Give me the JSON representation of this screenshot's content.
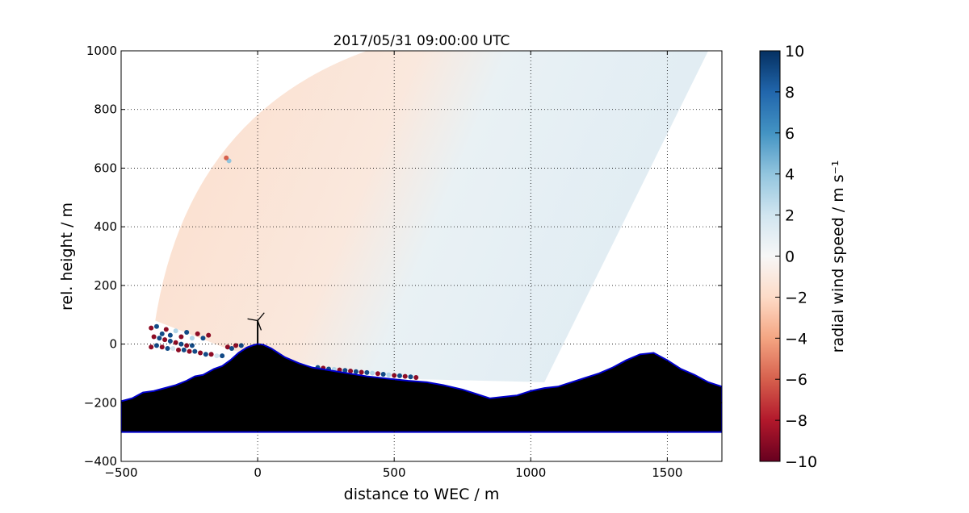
{
  "chart_data": {
    "type": "heatmap",
    "title": "2017/05/31 09:00:00 UTC",
    "xlabel": "distance to WEC / m",
    "ylabel": "rel. height / m",
    "xlim": [
      -500,
      1700
    ],
    "ylim": [
      -400,
      1000
    ],
    "xticks": [
      -500,
      0,
      500,
      1000,
      1500
    ],
    "yticks": [
      -400,
      -200,
      0,
      200,
      400,
      600,
      800,
      1000
    ],
    "xtick_labels": [
      "−500",
      "0",
      "500",
      "1000",
      "1500"
    ],
    "ytick_labels": [
      "−400",
      "−200",
      "0",
      "200",
      "400",
      "600",
      "800",
      "1000"
    ],
    "grid": true,
    "colorbar": {
      "label": "radial wind speed / m s⁻¹",
      "range": [
        -10,
        10
      ],
      "colormap": "RdBu",
      "ticks": [
        -10,
        -8,
        -6,
        -4,
        -2,
        0,
        2,
        4,
        6,
        8,
        10
      ],
      "tick_labels": [
        "−10",
        "−8",
        "−6",
        "−4",
        "−2",
        "0",
        "2",
        "4",
        "6",
        "8",
        "10"
      ]
    },
    "scan": {
      "description": "RHI lidar scan sector",
      "near_edge": [
        [
          -375,
          80
        ],
        [
          -100,
          -20
        ],
        [
          250,
          -80
        ],
        [
          600,
          -120
        ],
        [
          1050,
          -130
        ]
      ],
      "far_edge_start": [
        -375,
        80
      ],
      "far_edge_end": [
        1650,
        1000
      ],
      "west_sector_value": -1.8,
      "east_sector_value": 1.2
    },
    "terrain": {
      "color": "#000000",
      "outline_color": "#0000cc",
      "base": -300,
      "profile": [
        [
          -500,
          -195
        ],
        [
          -460,
          -185
        ],
        [
          -420,
          -165
        ],
        [
          -380,
          -160
        ],
        [
          -340,
          -150
        ],
        [
          -300,
          -140
        ],
        [
          -260,
          -125
        ],
        [
          -230,
          -110
        ],
        [
          -200,
          -105
        ],
        [
          -160,
          -85
        ],
        [
          -130,
          -75
        ],
        [
          -100,
          -55
        ],
        [
          -70,
          -30
        ],
        [
          -40,
          -12
        ],
        [
          -20,
          -5
        ],
        [
          0,
          0
        ],
        [
          20,
          -2
        ],
        [
          50,
          -15
        ],
        [
          100,
          -45
        ],
        [
          150,
          -65
        ],
        [
          200,
          -80
        ],
        [
          300,
          -95
        ],
        [
          400,
          -110
        ],
        [
          500,
          -120
        ],
        [
          550,
          -125
        ],
        [
          620,
          -130
        ],
        [
          680,
          -140
        ],
        [
          750,
          -155
        ],
        [
          800,
          -170
        ],
        [
          850,
          -185
        ],
        [
          900,
          -180
        ],
        [
          950,
          -175
        ],
        [
          1000,
          -160
        ],
        [
          1050,
          -150
        ],
        [
          1100,
          -145
        ],
        [
          1150,
          -130
        ],
        [
          1200,
          -115
        ],
        [
          1250,
          -100
        ],
        [
          1300,
          -80
        ],
        [
          1350,
          -55
        ],
        [
          1400,
          -35
        ],
        [
          1450,
          -30
        ],
        [
          1500,
          -55
        ],
        [
          1550,
          -85
        ],
        [
          1600,
          -105
        ],
        [
          1650,
          -130
        ],
        [
          1700,
          -145
        ]
      ]
    },
    "turbine": {
      "x": 0,
      "hub_height": 80,
      "rotor_radius": 35
    },
    "scatter_points": [
      {
        "x": -390,
        "y": 55,
        "v": -9
      },
      {
        "x": -370,
        "y": 60,
        "v": 9
      },
      {
        "x": -350,
        "y": 35,
        "v": 9
      },
      {
        "x": -335,
        "y": 50,
        "v": -9
      },
      {
        "x": -320,
        "y": 30,
        "v": 9
      },
      {
        "x": -300,
        "y": 45,
        "v": 3
      },
      {
        "x": -280,
        "y": 25,
        "v": -9
      },
      {
        "x": -260,
        "y": 40,
        "v": 9
      },
      {
        "x": -240,
        "y": 20,
        "v": 3
      },
      {
        "x": -220,
        "y": 35,
        "v": -9
      },
      {
        "x": -200,
        "y": 20,
        "v": 9
      },
      {
        "x": -180,
        "y": 30,
        "v": -9
      },
      {
        "x": -380,
        "y": 25,
        "v": -9
      },
      {
        "x": -360,
        "y": 20,
        "v": 9
      },
      {
        "x": -340,
        "y": 15,
        "v": -9
      },
      {
        "x": -320,
        "y": 10,
        "v": 9
      },
      {
        "x": -300,
        "y": 5,
        "v": -9
      },
      {
        "x": -280,
        "y": 0,
        "v": 9
      },
      {
        "x": -260,
        "y": -5,
        "v": -9
      },
      {
        "x": -240,
        "y": -5,
        "v": 9
      },
      {
        "x": -390,
        "y": -10,
        "v": -9
      },
      {
        "x": -370,
        "y": -5,
        "v": 9
      },
      {
        "x": -350,
        "y": -10,
        "v": -9
      },
      {
        "x": -330,
        "y": -15,
        "v": 9
      },
      {
        "x": -310,
        "y": -15,
        "v": 2
      },
      {
        "x": -290,
        "y": -20,
        "v": -9
      },
      {
        "x": -270,
        "y": -20,
        "v": 9
      },
      {
        "x": -250,
        "y": -25,
        "v": -9
      },
      {
        "x": -230,
        "y": -25,
        "v": 9
      },
      {
        "x": -210,
        "y": -30,
        "v": -9
      },
      {
        "x": -190,
        "y": -35,
        "v": 9
      },
      {
        "x": -170,
        "y": -35,
        "v": -9
      },
      {
        "x": -150,
        "y": -40,
        "v": 2
      },
      {
        "x": -130,
        "y": -40,
        "v": 9
      },
      {
        "x": -110,
        "y": -10,
        "v": -9
      },
      {
        "x": -95,
        "y": -15,
        "v": 9
      },
      {
        "x": -80,
        "y": -5,
        "v": -9
      },
      {
        "x": -60,
        "y": -5,
        "v": 9
      },
      {
        "x": -105,
        "y": 625,
        "v": 4
      },
      {
        "x": -115,
        "y": 635,
        "v": -6
      },
      {
        "x": 220,
        "y": -80,
        "v": 9
      },
      {
        "x": 240,
        "y": -82,
        "v": -9
      },
      {
        "x": 260,
        "y": -85,
        "v": 9
      },
      {
        "x": 280,
        "y": -86,
        "v": 3
      },
      {
        "x": 300,
        "y": -88,
        "v": -9
      },
      {
        "x": 320,
        "y": -90,
        "v": 9
      },
      {
        "x": 340,
        "y": -92,
        "v": -9
      },
      {
        "x": 360,
        "y": -94,
        "v": 9
      },
      {
        "x": 380,
        "y": -96,
        "v": -9
      },
      {
        "x": 400,
        "y": -97,
        "v": 9
      },
      {
        "x": 420,
        "y": -99,
        "v": 3
      },
      {
        "x": 440,
        "y": -101,
        "v": -9
      },
      {
        "x": 460,
        "y": -103,
        "v": 9
      },
      {
        "x": 480,
        "y": -105,
        "v": 3
      },
      {
        "x": 500,
        "y": -107,
        "v": -9
      },
      {
        "x": 520,
        "y": -108,
        "v": 9
      },
      {
        "x": 540,
        "y": -110,
        "v": -9
      },
      {
        "x": 560,
        "y": -112,
        "v": 9
      },
      {
        "x": 580,
        "y": -114,
        "v": -9
      }
    ]
  }
}
